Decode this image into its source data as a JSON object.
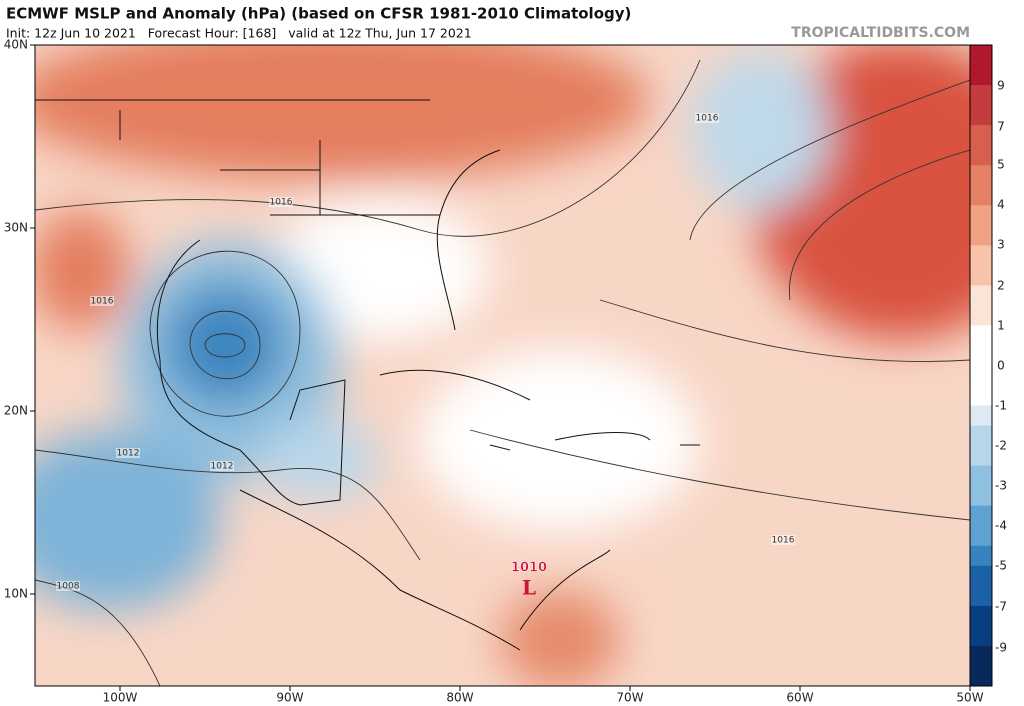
{
  "header": {
    "title": "ECMWF MSLP and Anomaly (hPa) (based on CFSR 1981-2010 Climatology)",
    "subtitle": "Init: 12z Jun 10 2021   Forecast Hour: [168]   valid at 12z Thu, Jun 17 2021",
    "source": "TROPICALTIDBITS.COM"
  },
  "map": {
    "latitude_labels": [
      "40N",
      "30N",
      "20N",
      "10N"
    ],
    "longitude_labels": [
      "100W",
      "90W",
      "80W",
      "70W",
      "60W",
      "50W"
    ],
    "contour_labels": [
      "1016",
      "1016",
      "1016",
      "1012",
      "1012",
      "1008",
      "1016"
    ],
    "low": {
      "pressure": "1010",
      "symbol": "L"
    }
  },
  "colorbar": {
    "labels": [
      9,
      7,
      5,
      4,
      3,
      2,
      1,
      0,
      -1,
      -2,
      -3,
      -4,
      -5,
      -7,
      -9
    ]
  }
}
